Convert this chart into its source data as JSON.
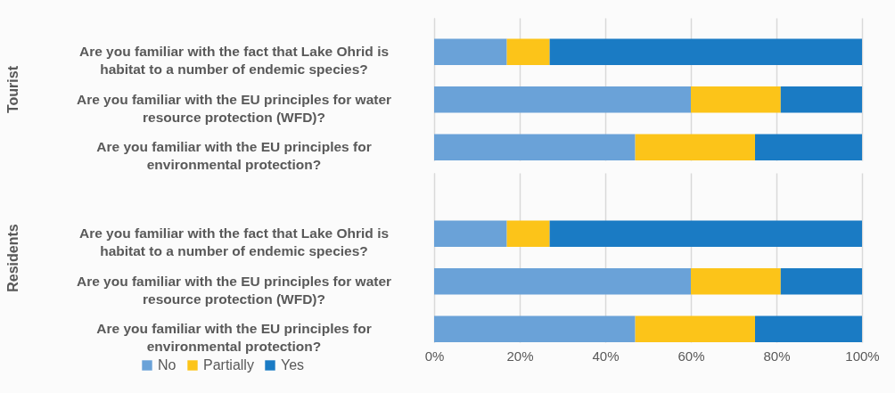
{
  "chart_data": [
    {
      "type": "bar",
      "orientation": "horizontal",
      "stacked": true,
      "ylabel": "Tourist",
      "categories": [
        "Are you familiar with the fact that Lake Ohrid is habitat to a number of endemic species?",
        "Are you familiar with the EU principles for water resource protection (WFD)?",
        "Are you familiar with the EU principles for environmental protection?"
      ],
      "series": [
        {
          "color": "#6aa2d8",
          "values": [
            17,
            60,
            47
          ]
        },
        {
          "color": "#fcc419",
          "values": [
            10,
            21,
            28
          ]
        },
        {
          "color": "#1a7bc4",
          "values": [
            73,
            19,
            25
          ]
        }
      ],
      "xlim": [
        0,
        100
      ],
      "xticks": [
        {
          "value": 0,
          "label": null
        },
        {
          "value": 20,
          "label": null
        },
        {
          "value": 40,
          "label": null
        },
        {
          "value": 60,
          "label": null
        },
        {
          "value": 80,
          "label": null
        },
        {
          "value": 100,
          "label": null
        }
      ],
      "grid": "x",
      "tick_labels": "y"
    },
    {
      "type": "bar",
      "orientation": "horizontal",
      "stacked": true,
      "ylabel": "Residents",
      "categories": [
        "Are you familiar with the fact that Lake Ohrid is habitat to a number of endemic species?",
        "Are you familiar with the EU principles for water resource protection (WFD)?",
        "Are you familiar with the EU principles for environmental protection?"
      ],
      "series": [
        {
          "name": "No",
          "color": "#6aa2d8",
          "values": [
            17,
            60,
            47
          ]
        },
        {
          "name": "Partially",
          "color": "#fcc419",
          "values": [
            10,
            21,
            28
          ]
        },
        {
          "name": "Yes",
          "color": "#1a7bc4",
          "values": [
            73,
            19,
            25
          ]
        }
      ],
      "xlim": [
        0,
        100
      ],
      "xticks": [
        {
          "value": 0,
          "label": "0%"
        },
        {
          "value": 20,
          "label": "20%"
        },
        {
          "value": 40,
          "label": "40%"
        },
        {
          "value": 60,
          "label": "60%"
        },
        {
          "value": 80,
          "label": "80%"
        },
        {
          "value": 100,
          "label": "100%"
        }
      ],
      "grid": "x",
      "legend": "bottom"
    }
  ]
}
